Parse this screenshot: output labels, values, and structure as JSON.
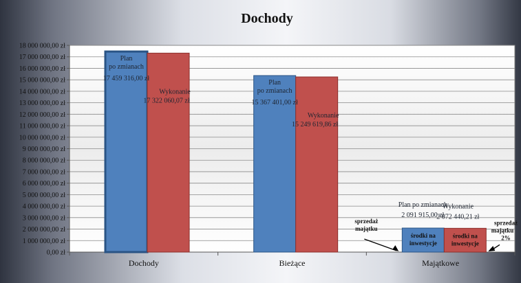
{
  "chart_data": {
    "type": "bar",
    "title": "Dochody",
    "categories": [
      "Dochody",
      "Bieżące",
      "Majątkowe"
    ],
    "series": [
      {
        "values": [
          17459316.0,
          15367401.0,
          2091915.0
        ]
      },
      {
        "values": [
          17322060.07,
          15249619.86,
          2072440.21
        ]
      }
    ],
    "ylim": [
      0,
      18000000
    ],
    "ytick_step": 1000000,
    "ytick_labels": [
      "0,00 zł",
      "1 000 000,00 zł",
      "2 000 000,00 zł",
      "3 000 000,00 zł",
      "4 000 000,00 zł",
      "5 000 000,00 zł",
      "6 000 000,00 zł",
      "7 000 000,00 zł",
      "8 000 000,00 zł",
      "9 000 000,00 zł",
      "10 000 000,00 zł",
      "11 000 000,00 zł",
      "12 000 000,00 zł",
      "13 000 000,00 zł",
      "14 000 000,00 zł",
      "15 000 000,00 zł",
      "16 000 000,00 zł",
      "17 000 000,00 zł",
      "18 000 000,00 zł"
    ],
    "data_labels": [
      [
        {
          "line1": "Plan",
          "line2": "po zmianach",
          "value": "17 459 316,00 zł"
        },
        {
          "line1": "Wykonanie",
          "line2": "",
          "value": "17 322 060,07 zł"
        }
      ],
      [
        {
          "line1": "Plan",
          "line2": "po zmianach",
          "value": "15 367 401,00 zł"
        },
        {
          "line1": "Wykonanie",
          "line2": "",
          "value": "15 249 619,86 zł"
        }
      ],
      [
        {
          "line1": "Plan po zmianach",
          "line2": "",
          "value": "2 091 915,00 zł"
        },
        {
          "line1": "Wykonanie",
          "line2": "",
          "value": "2 072 440,21 zł"
        }
      ]
    ],
    "in_bar_labels": [
      "środki na inwestycje",
      "środki na inwestycje"
    ],
    "annotations": [
      {
        "lines": [
          "sprzedaż",
          "majątku"
        ]
      },
      {
        "lines": [
          "sprzedaż",
          "majątku",
          "2%"
        ]
      }
    ],
    "grid": true,
    "colors": {
      "plan": "#4f81bd",
      "plan_dark": "#2a5485",
      "wykonanie": "#c0504d",
      "wykonanie_dark": "#8c2f2c",
      "grid": "#8a8a8a",
      "plot_bg": "#f2f2f2"
    }
  }
}
